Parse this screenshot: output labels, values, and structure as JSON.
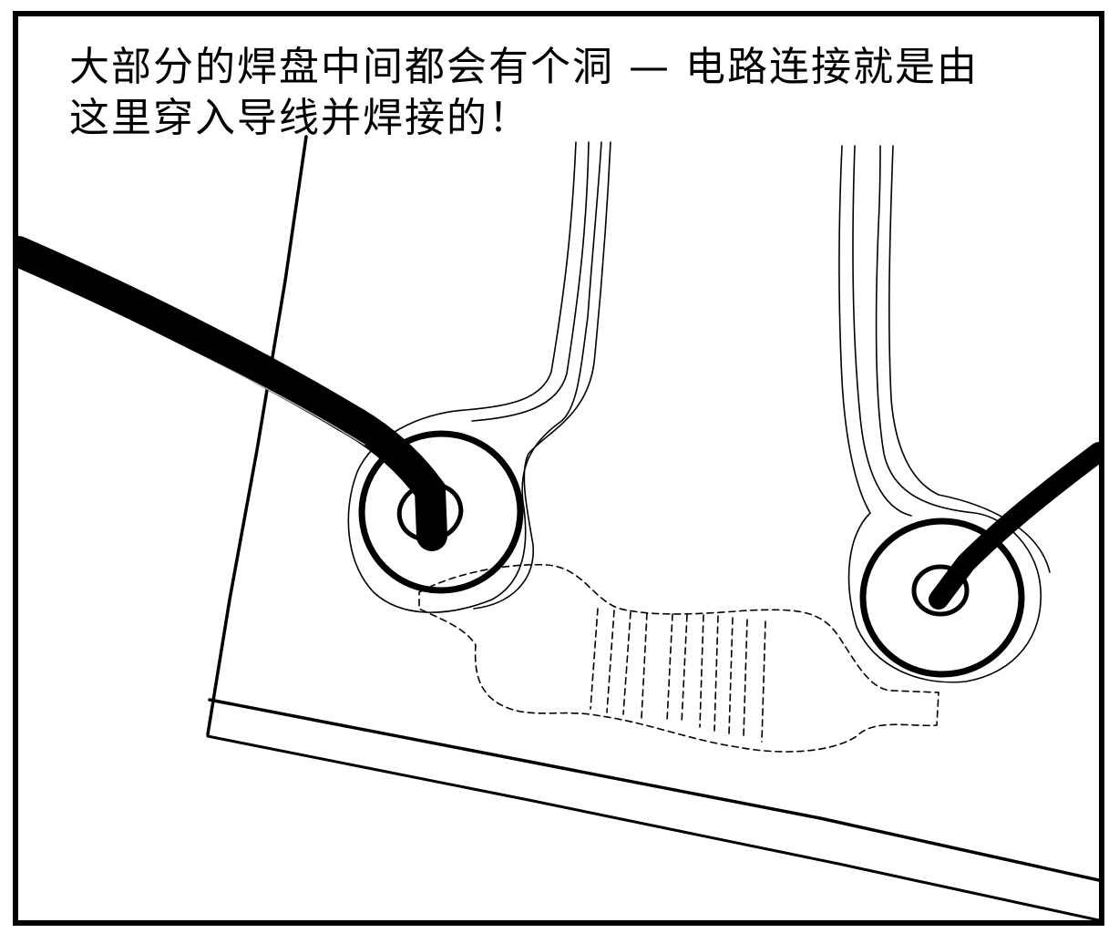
{
  "caption": {
    "line1": "大部分的焊盘中间都会有个洞 — 电路连接就是由",
    "line2": "这里穿入导线并焊接的！"
  },
  "colors": {
    "ink": "#000000",
    "paper": "#ffffff"
  },
  "illustration": {
    "subject": "pcb-solder-pads-with-through-hole-leads",
    "elements": [
      "board-edge",
      "copper-trace-left",
      "copper-trace-right",
      "solder-pad-left",
      "solder-pad-right",
      "component-lead-left",
      "component-lead-right",
      "resistor-outline"
    ]
  }
}
